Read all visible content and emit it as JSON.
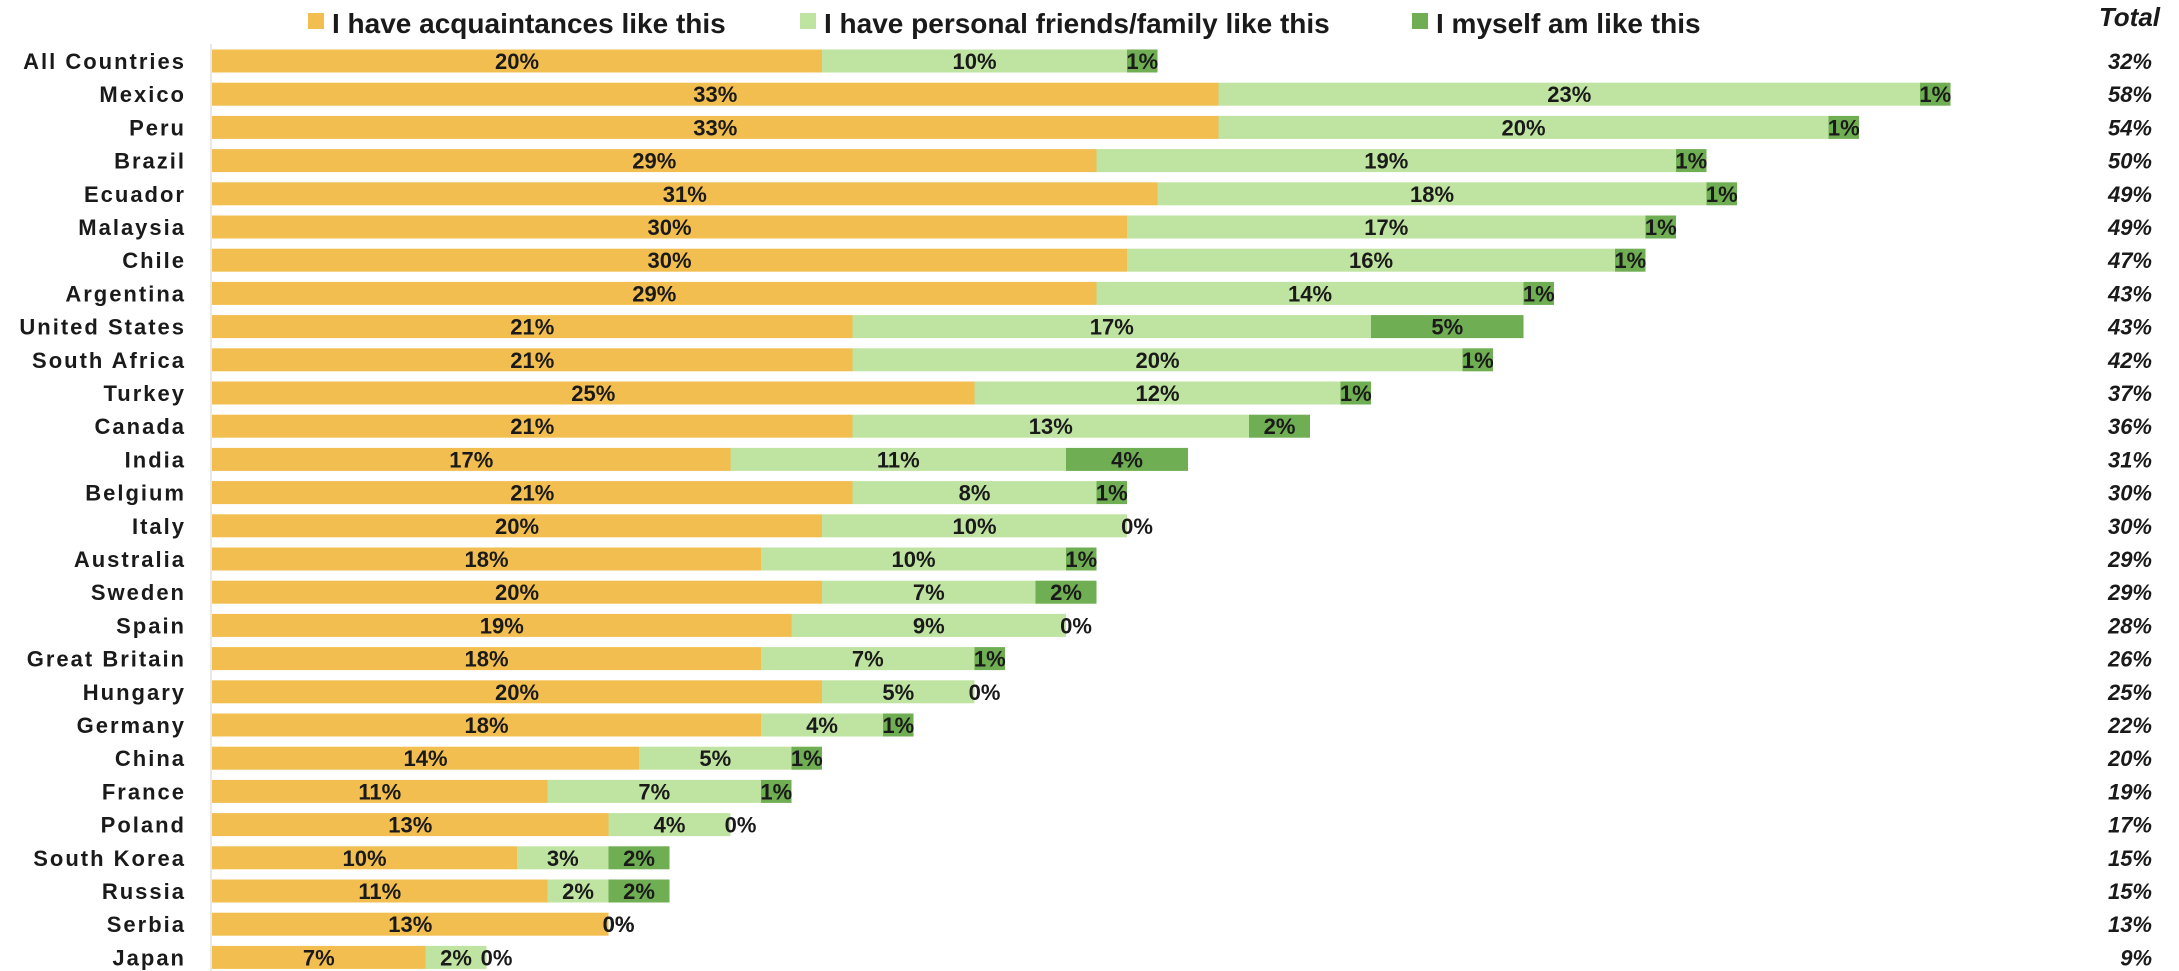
{
  "chart_data": {
    "type": "bar",
    "orientation": "horizontal",
    "stacked": true,
    "legend_position": "top",
    "grid": false,
    "categories": [
      "All Countries",
      "Mexico",
      "Peru",
      "Brazil",
      "Ecuador",
      "Malaysia",
      "Chile",
      "Argentina",
      "United States",
      "South Africa",
      "Turkey",
      "Canada",
      "India",
      "Belgium",
      "Italy",
      "Australia",
      "Sweden",
      "Spain",
      "Great Britain",
      "Hungary",
      "Germany",
      "China",
      "France",
      "Poland",
      "South Korea",
      "Russia",
      "Serbia",
      "Japan"
    ],
    "series": [
      {
        "name": "I have acquaintances like this",
        "color": "#F2BE4F",
        "values": [
          20,
          33,
          33,
          29,
          31,
          30,
          30,
          29,
          21,
          21,
          25,
          21,
          17,
          21,
          20,
          18,
          20,
          19,
          18,
          20,
          18,
          14,
          11,
          13,
          10,
          11,
          13,
          7
        ]
      },
      {
        "name": "I have personal friends/family like this",
        "color": "#BFE3A0",
        "values": [
          10,
          23,
          20,
          19,
          18,
          17,
          16,
          14,
          17,
          20,
          12,
          13,
          11,
          8,
          10,
          10,
          7,
          9,
          7,
          5,
          4,
          5,
          7,
          4,
          3,
          2,
          0,
          2
        ]
      },
      {
        "name": "I myself am like this",
        "color": "#6FAE52",
        "values": [
          1,
          1,
          1,
          1,
          1,
          1,
          1,
          1,
          5,
          1,
          1,
          2,
          4,
          1,
          0,
          1,
          2,
          0,
          1,
          0,
          1,
          1,
          1,
          0,
          2,
          2,
          0,
          0
        ]
      }
    ],
    "totals_header": "Total",
    "totals": [
      32,
      58,
      54,
      50,
      49,
      49,
      47,
      43,
      43,
      42,
      37,
      36,
      31,
      30,
      30,
      29,
      29,
      28,
      26,
      25,
      22,
      20,
      19,
      17,
      15,
      15,
      13,
      9
    ],
    "value_suffix": "%"
  }
}
